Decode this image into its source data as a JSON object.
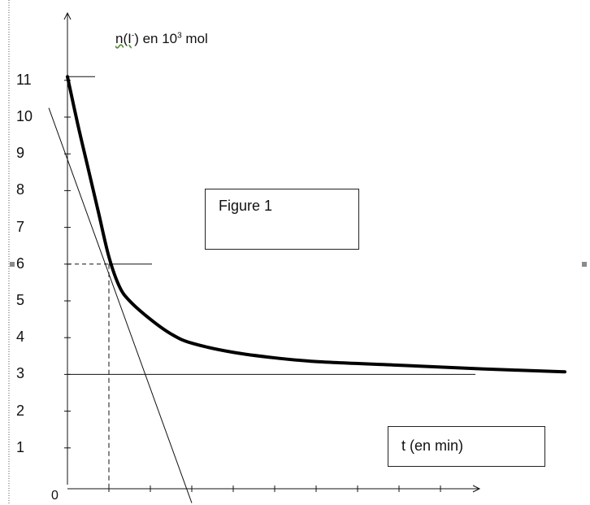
{
  "chart_data": {
    "type": "line",
    "ylabel_parts": {
      "pre": "n(I",
      "sup1": "-",
      "mid": ") en 10",
      "sup2": "3",
      "post": " mol"
    },
    "xlabel": "t (en min)",
    "annotation": "Figure 1",
    "origin_label": "0",
    "y_ticks": [
      1,
      2,
      3,
      4,
      5,
      6,
      7,
      8,
      9,
      10,
      11
    ],
    "ylim": [
      0,
      11
    ],
    "series": [
      {
        "values_x": [
          0,
          0.25,
          0.5,
          0.75,
          1.0,
          1.25,
          1.5,
          2.0,
          2.5,
          3.0,
          4.0,
          5.0,
          6.0,
          8.0,
          10.0,
          12.0
        ],
        "values_y": [
          11.1,
          9.8,
          8.6,
          7.4,
          6.2,
          5.4,
          5.0,
          4.5,
          4.1,
          3.85,
          3.6,
          3.45,
          3.35,
          3.25,
          3.15,
          3.07
        ]
      }
    ],
    "tangent": {
      "x1": -0.45,
      "y1": 10.25,
      "x2": 3.0,
      "y2": -0.5
    },
    "asymptote_y": 3,
    "marked_point": {
      "x": 1.0,
      "y": 6
    },
    "initial_value": 11.1
  }
}
